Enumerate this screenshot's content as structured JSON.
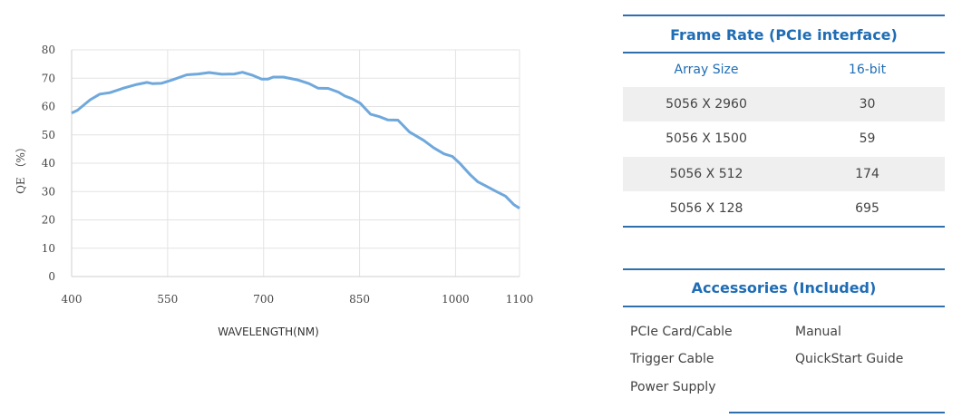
{
  "chart_data": {
    "type": "line",
    "title": "",
    "xlabel": "WAVELENGTH(NM)",
    "ylabel": "QE （%）",
    "xlim": [
      400,
      1100
    ],
    "ylim": [
      0,
      80
    ],
    "xticks": [
      400,
      550,
      700,
      850,
      1000,
      1100
    ],
    "yticks": [
      0,
      10,
      20,
      30,
      40,
      50,
      60,
      70,
      80
    ],
    "grid": true,
    "line_color": "#6fa8dc",
    "series": [
      {
        "name": "QE",
        "x": [
          400,
          409,
          429,
          444,
          460,
          481,
          502,
          518,
          526,
          540,
          556,
          580,
          598,
          615,
          635,
          654,
          667,
          683,
          697,
          707,
          715,
          731,
          753,
          771,
          785,
          801,
          817,
          827,
          838,
          851,
          867,
          880,
          894,
          910,
          928,
          950,
          966,
          982,
          995,
          1006,
          1023,
          1035,
          1048,
          1064,
          1078,
          1091,
          1100
        ],
        "y": [
          57.7,
          58.7,
          62.4,
          64.4,
          64.9,
          66.5,
          67.8,
          68.5,
          68.1,
          68.2,
          69.3,
          71.2,
          71.5,
          72,
          71.4,
          71.5,
          72.1,
          71,
          69.7,
          69.7,
          70.4,
          70.4,
          69.4,
          68.1,
          66.5,
          66.4,
          65.1,
          63.7,
          62.8,
          61.2,
          57.3,
          56.5,
          55.3,
          55.2,
          51,
          48.1,
          45.4,
          43.3,
          42.4,
          40.1,
          35.9,
          33.4,
          31.9,
          30,
          28.4,
          25.4,
          24.1
        ]
      }
    ]
  },
  "frame_rate": {
    "title": "Frame Rate (PCIe interface)",
    "headers": [
      "Array Size",
      "16-bit"
    ],
    "rows": [
      [
        "5056 X 2960",
        "30"
      ],
      [
        "5056 X 1500",
        "59"
      ],
      [
        "5056 X 512",
        "174"
      ],
      [
        "5056 X 128",
        "695"
      ]
    ]
  },
  "accessories": {
    "title": "Accessories (Included)",
    "col1": [
      "PCIe Card/Cable",
      "Trigger Cable",
      "Power Supply"
    ],
    "col2": [
      "Manual",
      "QuickStart Guide"
    ]
  },
  "colors": {
    "accent": "#1f6db5",
    "rule": "#2f6fae"
  }
}
